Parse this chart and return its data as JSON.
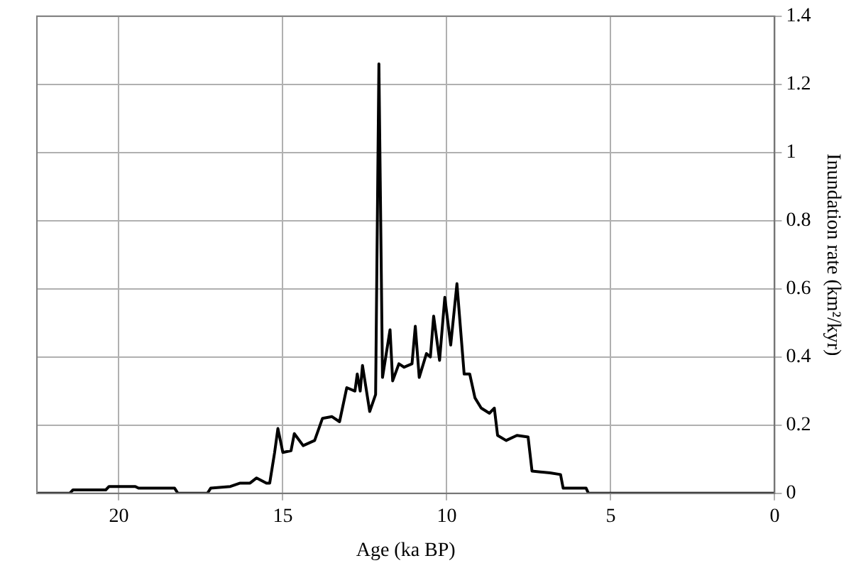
{
  "chart_data": {
    "type": "line",
    "xlabel": "Age (ka BP)",
    "ylabel": "Inundation rate (km²/kyr)",
    "x": [
      22.5,
      21.5,
      21.4,
      20.4,
      20.3,
      19.5,
      19.4,
      18.3,
      18.2,
      17.3,
      17.2,
      16.6,
      16.3,
      16.0,
      15.8,
      15.5,
      15.4,
      15.3,
      15.25,
      15.15,
      15.0,
      14.75,
      14.65,
      14.38,
      14.03,
      13.79,
      13.5,
      13.27,
      13.05,
      12.8,
      12.73,
      12.64,
      12.57,
      12.35,
      12.17,
      12.07,
      11.96,
      11.73,
      11.65,
      11.46,
      11.3,
      11.06,
      10.96,
      10.84,
      10.62,
      10.5,
      10.4,
      10.22,
      10.06,
      9.88,
      9.69,
      9.47,
      9.3,
      9.14,
      8.95,
      8.7,
      8.55,
      8.45,
      8.19,
      7.86,
      7.52,
      7.4,
      6.85,
      6.53,
      6.45,
      5.75,
      5.68,
      0
    ],
    "series": [
      {
        "color": "#000000",
        "values": [
          0,
          0,
          0.01,
          0.01,
          0.02,
          0.02,
          0.015,
          0.015,
          0,
          0,
          0.015,
          0.02,
          0.03,
          0.03,
          0.045,
          0.03,
          0.03,
          0.09,
          0.12,
          0.19,
          0.12,
          0.125,
          0.175,
          0.14,
          0.155,
          0.22,
          0.225,
          0.21,
          0.31,
          0.3,
          0.35,
          0.3,
          0.375,
          0.24,
          0.29,
          1.26,
          0.34,
          0.48,
          0.33,
          0.38,
          0.37,
          0.38,
          0.49,
          0.34,
          0.41,
          0.4,
          0.52,
          0.39,
          0.575,
          0.435,
          0.615,
          0.35,
          0.35,
          0.28,
          0.25,
          0.235,
          0.25,
          0.17,
          0.155,
          0.17,
          0.165,
          0.065,
          0.06,
          0.055,
          0.015,
          0.015,
          0,
          0
        ]
      }
    ],
    "xlim": [
      22.5,
      0
    ],
    "xticks": [
      20,
      15,
      10,
      5,
      0
    ],
    "ylim": [
      0,
      1.4
    ],
    "yticks": [
      0,
      0.2,
      0.4,
      0.6,
      0.8,
      1,
      1.2,
      1.4
    ],
    "grid": true,
    "legend": false,
    "marker": "none",
    "line_style": "solid"
  }
}
